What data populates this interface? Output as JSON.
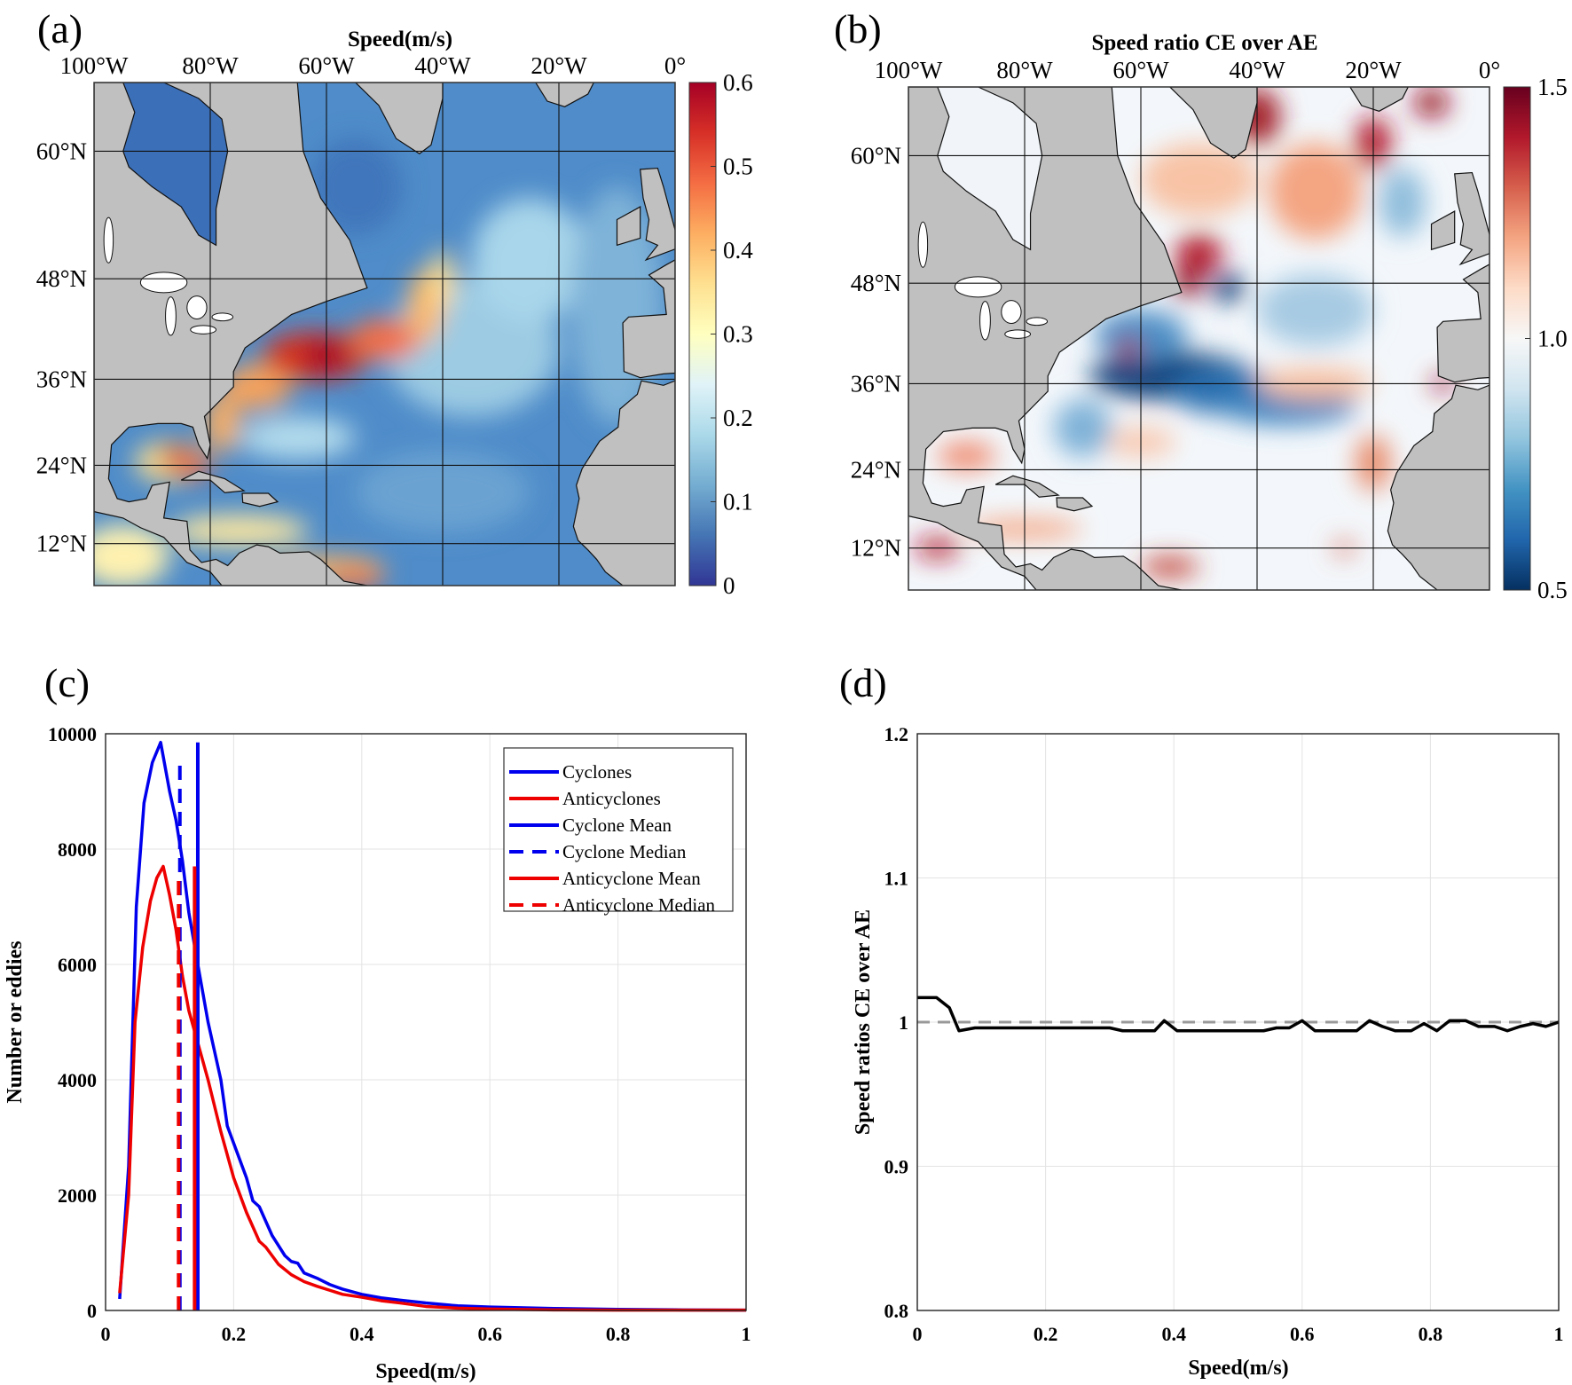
{
  "panels": {
    "a": "(a)",
    "b": "(b)",
    "c": "(c)",
    "d": "(d)"
  },
  "maps": [
    {
      "id": "a",
      "title": "Speed(m/s)",
      "lon_ticks": [
        "100°W",
        "80°W",
        "60°W",
        "40°W",
        "20°W",
        "0°"
      ],
      "lon_values": [
        -100,
        -80,
        -60,
        -40,
        -20,
        0
      ],
      "lat_ticks": [
        "60°N",
        "48°N",
        "36°N",
        "24°N",
        "12°N"
      ],
      "lat_values": [
        60,
        48,
        36,
        24,
        12
      ],
      "extent": {
        "lon": [
          -100,
          0
        ],
        "lat": [
          5.3,
          65.1
        ]
      },
      "colorbar": {
        "labels": [
          "0.6",
          "0.5",
          "0.4",
          "0.3",
          "0.2",
          "0.1",
          "0"
        ],
        "values": [
          0.6,
          0.5,
          0.4,
          0.3,
          0.2,
          0.1,
          0
        ],
        "range": [
          0,
          0.6
        ],
        "colors": [
          "#a50026",
          "#d73027",
          "#f46d43",
          "#fdae61",
          "#fee090",
          "#ffffbf",
          "#e0f3f8",
          "#abd9e9",
          "#74add1",
          "#4575b4",
          "#313695"
        ]
      },
      "ocean_base": "#4f8cc9"
    },
    {
      "id": "b",
      "title": "Speed ratio CE over AE",
      "lon_ticks": [
        "100°W",
        "80°W",
        "60°W",
        "40°W",
        "20°W",
        "0°"
      ],
      "lon_values": [
        -100,
        -80,
        -60,
        -40,
        -20,
        0
      ],
      "lat_ticks": [
        "60°N",
        "48°N",
        "36°N",
        "24°N",
        "12°N"
      ],
      "lat_values": [
        60,
        48,
        36,
        24,
        12
      ],
      "extent": {
        "lon": [
          -100,
          0
        ],
        "lat": [
          5.3,
          65.1
        ]
      },
      "colorbar": {
        "labels": [
          "1.5",
          "1.0",
          "0.5"
        ],
        "values": [
          1.5,
          1.0,
          0.5
        ],
        "range": [
          0.5,
          1.5
        ],
        "colors": [
          "#67001f",
          "#b2182b",
          "#d6604d",
          "#f4a582",
          "#fddbc7",
          "#f7f7f7",
          "#d1e5f0",
          "#92c5de",
          "#4393c3",
          "#2166ac",
          "#053061"
        ]
      },
      "ocean_base": "#f3f7fb"
    }
  ],
  "chart_data": [
    {
      "type": "line",
      "panel": "c",
      "xlabel": "Speed(m/s)",
      "ylabel": "Number or eddies",
      "xlim": [
        0,
        1
      ],
      "ylim": [
        0,
        10000
      ],
      "xticks": [
        "0",
        "0.2",
        "0.4",
        "0.6",
        "0.8",
        "1"
      ],
      "xtick_values": [
        0,
        0.2,
        0.4,
        0.6,
        0.8,
        1
      ],
      "yticks": [
        "0",
        "2000",
        "4000",
        "6000",
        "8000",
        "10000"
      ],
      "ytick_values": [
        0,
        2000,
        4000,
        6000,
        8000,
        10000
      ],
      "grid": true,
      "legend_position": "top-right",
      "series": [
        {
          "name": "Cyclones",
          "color": "#0000ee",
          "style": "solid",
          "points": [
            [
              0.022,
              200
            ],
            [
              0.036,
              2500
            ],
            [
              0.048,
              7000
            ],
            [
              0.06,
              8800
            ],
            [
              0.073,
              9500
            ],
            [
              0.086,
              9850
            ],
            [
              0.1,
              9000
            ],
            [
              0.11,
              8500
            ],
            [
              0.12,
              7800
            ],
            [
              0.13,
              6900
            ],
            [
              0.144,
              6000
            ],
            [
              0.16,
              5000
            ],
            [
              0.18,
              4000
            ],
            [
              0.19,
              3200
            ],
            [
              0.2,
              2900
            ],
            [
              0.22,
              2300
            ],
            [
              0.23,
              1900
            ],
            [
              0.24,
              1800
            ],
            [
              0.26,
              1300
            ],
            [
              0.28,
              950
            ],
            [
              0.29,
              850
            ],
            [
              0.3,
              820
            ],
            [
              0.31,
              650
            ],
            [
              0.33,
              560
            ],
            [
              0.35,
              450
            ],
            [
              0.37,
              370
            ],
            [
              0.4,
              280
            ],
            [
              0.43,
              220
            ],
            [
              0.46,
              180
            ],
            [
              0.5,
              130
            ],
            [
              0.55,
              80
            ],
            [
              0.6,
              60
            ],
            [
              0.7,
              35
            ],
            [
              0.8,
              20
            ],
            [
              0.9,
              10
            ],
            [
              1.0,
              5
            ]
          ]
        },
        {
          "name": "Anticyclones",
          "color": "#ee0000",
          "style": "solid",
          "points": [
            [
              0.022,
              300
            ],
            [
              0.036,
              2000
            ],
            [
              0.046,
              5000
            ],
            [
              0.058,
              6300
            ],
            [
              0.07,
              7100
            ],
            [
              0.08,
              7500
            ],
            [
              0.09,
              7700
            ],
            [
              0.1,
              7200
            ],
            [
              0.11,
              6600
            ],
            [
              0.12,
              5800
            ],
            [
              0.13,
              5200
            ],
            [
              0.14,
              4800
            ],
            [
              0.16,
              4000
            ],
            [
              0.18,
              3100
            ],
            [
              0.2,
              2300
            ],
            [
              0.22,
              1700
            ],
            [
              0.24,
              1200
            ],
            [
              0.25,
              1100
            ],
            [
              0.27,
              800
            ],
            [
              0.29,
              620
            ],
            [
              0.31,
              500
            ],
            [
              0.33,
              420
            ],
            [
              0.35,
              350
            ],
            [
              0.37,
              280
            ],
            [
              0.4,
              230
            ],
            [
              0.43,
              170
            ],
            [
              0.46,
              130
            ],
            [
              0.5,
              70
            ],
            [
              0.55,
              40
            ],
            [
              0.6,
              25
            ],
            [
              0.7,
              10
            ],
            [
              0.8,
              5
            ],
            [
              1.0,
              5
            ]
          ]
        },
        {
          "name": "Cyclone Mean",
          "color": "#0000ee",
          "style": "solid",
          "vline": {
            "x": 0.144,
            "y": [
              0,
              9850
            ]
          }
        },
        {
          "name": "Cyclone Median",
          "color": "#0000ee",
          "style": "dashed",
          "vline": {
            "x": 0.116,
            "y": [
              0,
              9500
            ]
          }
        },
        {
          "name": "Anticyclone Mean",
          "color": "#ee0000",
          "style": "solid",
          "vline": {
            "x": 0.139,
            "y": [
              0,
              7700
            ]
          }
        },
        {
          "name": "Anticyclone Median",
          "color": "#ee0000",
          "style": "dashed",
          "vline": {
            "x": 0.114,
            "y": [
              0,
              7500
            ]
          }
        }
      ]
    },
    {
      "type": "line",
      "panel": "d",
      "xlabel": "Speed(m/s)",
      "ylabel": "Speed ratios CE over AE",
      "xlim": [
        0,
        1
      ],
      "ylim": [
        0.8,
        1.2
      ],
      "xticks": [
        "0",
        "0.2",
        "0.4",
        "0.6",
        "0.8",
        "1"
      ],
      "xtick_values": [
        0,
        0.2,
        0.4,
        0.6,
        0.8,
        1
      ],
      "yticks": [
        "0.8",
        "0.9",
        "1",
        "1.1",
        "1.2"
      ],
      "ytick_values": [
        0.8,
        0.9,
        1,
        1.1,
        1.2
      ],
      "grid": true,
      "reference_line": {
        "y": 1,
        "color": "#999999",
        "style": "dashed"
      },
      "series": [
        {
          "name": "ratio",
          "color": "#000000",
          "style": "solid",
          "points": [
            [
              0,
              1.017
            ],
            [
              0.03,
              1.017
            ],
            [
              0.05,
              1.01
            ],
            [
              0.065,
              0.994
            ],
            [
              0.09,
              0.996
            ],
            [
              0.3,
              0.996
            ],
            [
              0.32,
              0.994
            ],
            [
              0.37,
              0.994
            ],
            [
              0.385,
              1.001
            ],
            [
              0.405,
              0.994
            ],
            [
              0.54,
              0.994
            ],
            [
              0.56,
              0.996
            ],
            [
              0.58,
              0.996
            ],
            [
              0.6,
              1.001
            ],
            [
              0.62,
              0.994
            ],
            [
              0.685,
              0.994
            ],
            [
              0.705,
              1.001
            ],
            [
              0.725,
              0.997
            ],
            [
              0.745,
              0.994
            ],
            [
              0.77,
              0.994
            ],
            [
              0.79,
              0.999
            ],
            [
              0.81,
              0.994
            ],
            [
              0.83,
              1.001
            ],
            [
              0.855,
              1.001
            ],
            [
              0.875,
              0.997
            ],
            [
              0.9,
              0.997
            ],
            [
              0.92,
              0.994
            ],
            [
              0.94,
              0.997
            ],
            [
              0.96,
              0.999
            ],
            [
              0.98,
              0.997
            ],
            [
              1,
              1.0
            ]
          ]
        }
      ]
    }
  ]
}
